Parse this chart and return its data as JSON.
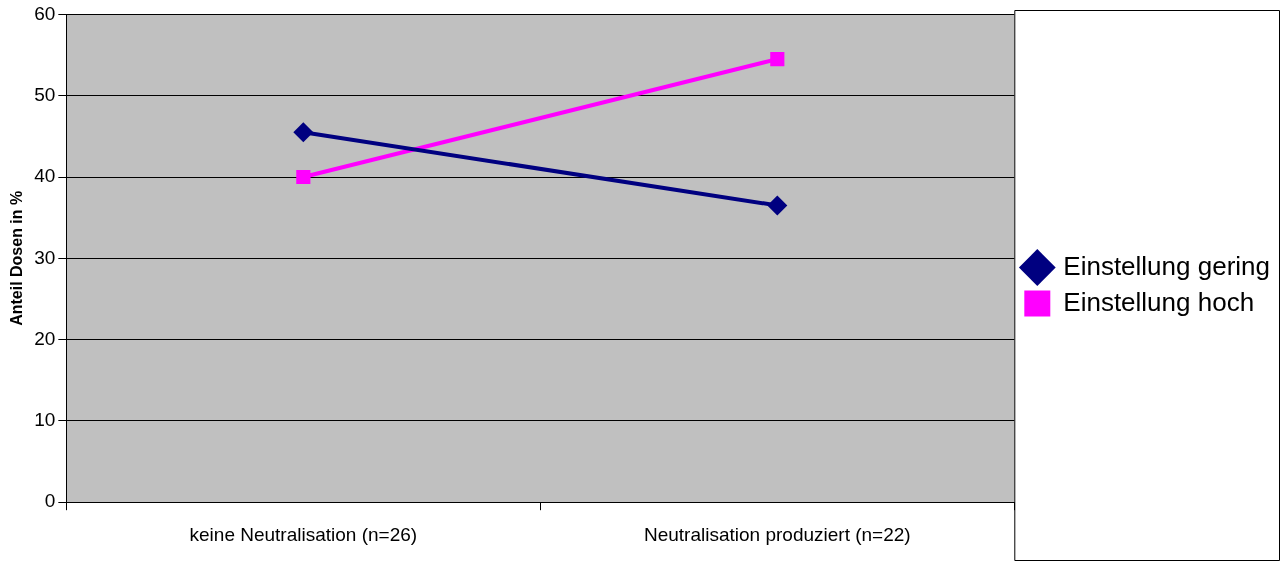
{
  "chart_data": {
    "type": "line",
    "ylabel": "Anteil Dosen in %",
    "categories": [
      "keine Neutralisation (n=26)",
      "Neutralisation produziert (n=22)"
    ],
    "series": [
      {
        "name": "Einstellung gering",
        "color": "#000080",
        "marker": "diamond",
        "values": [
          45.5,
          36.5
        ]
      },
      {
        "name": "Einstellung hoch",
        "color": "#ff00ff",
        "marker": "square",
        "values": [
          40,
          54.5
        ]
      }
    ],
    "ylim": [
      0,
      60
    ],
    "yticks": [
      0,
      10,
      20,
      30,
      40,
      50,
      60
    ],
    "grid": "y",
    "legend": "right",
    "line_style": "solid"
  }
}
